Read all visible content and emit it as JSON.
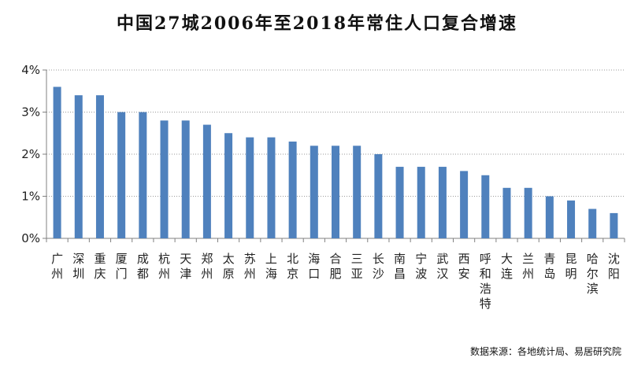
{
  "title": "中国27城2006年至2018年常住人口复合增速",
  "source": "数据来源：各地统计局、易居研究院",
  "chart_data": {
    "type": "bar",
    "title": "中国27城2006年至2018年常住人口复合增速",
    "xlabel": "",
    "ylabel": "",
    "categories": [
      "广州",
      "深圳",
      "重庆",
      "厦门",
      "成都",
      "杭州",
      "天津",
      "郑州",
      "太原",
      "苏州",
      "上海",
      "北京",
      "海口",
      "合肥",
      "三亚",
      "长沙",
      "南昌",
      "宁波",
      "武汉",
      "西安",
      "呼和浩特",
      "大连",
      "兰州",
      "青岛",
      "昆明",
      "哈尔滨",
      "沈阳"
    ],
    "values": [
      3.6,
      3.4,
      3.4,
      3.0,
      3.0,
      2.8,
      2.8,
      2.7,
      2.5,
      2.4,
      2.4,
      2.3,
      2.2,
      2.2,
      2.2,
      2.0,
      1.7,
      1.7,
      1.7,
      1.6,
      1.5,
      1.2,
      1.2,
      1.0,
      0.9,
      0.7,
      0.6
    ],
    "unit": "%",
    "ylim": [
      0,
      4
    ],
    "yticks": [
      "0%",
      "1%",
      "2%",
      "3%",
      "4%"
    ],
    "grid": true,
    "legend": "none",
    "bar_color": "#4F81BD",
    "grid_color": "#9a9a9a",
    "axis_color": "#808080"
  }
}
